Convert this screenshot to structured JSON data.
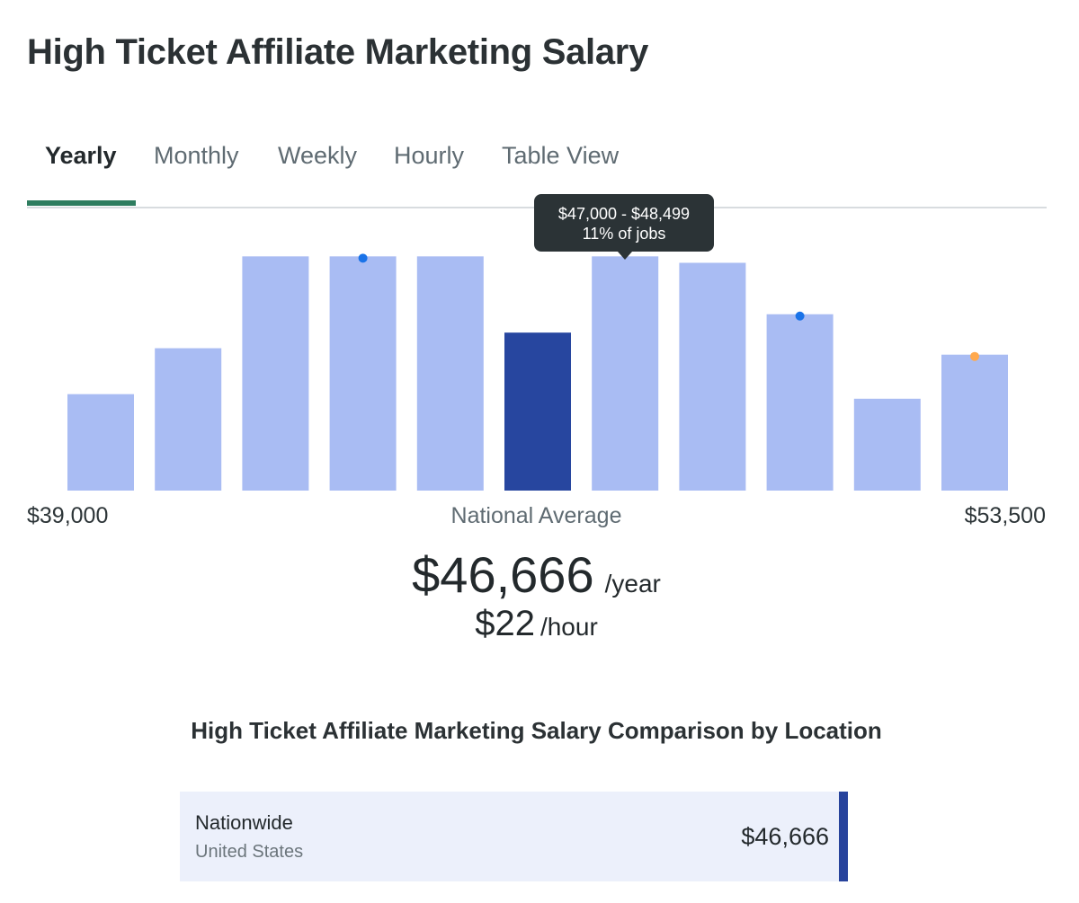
{
  "page": {
    "title": "High Ticket Affiliate Marketing Salary"
  },
  "tabs": [
    {
      "label": "Yearly",
      "active": true
    },
    {
      "label": "Monthly",
      "active": false
    },
    {
      "label": "Weekly",
      "active": false
    },
    {
      "label": "Hourly",
      "active": false
    },
    {
      "label": "Table View",
      "active": false
    }
  ],
  "chart_data": {
    "type": "bar",
    "x_min_label": "$39,000",
    "x_max_label": "$53,500",
    "center_label": "National Average",
    "values": [
      10.5,
      15.5,
      25.5,
      25.5,
      25.5,
      17.2,
      25.5,
      24.8,
      19.2,
      10.0,
      14.8
    ],
    "ylim": [
      0,
      27
    ],
    "highlight_index": 5,
    "markers": [
      {
        "bar": 3,
        "color": "#1a73e8"
      },
      {
        "bar": 8,
        "color": "#1a73e8"
      },
      {
        "bar": 10,
        "color": "#ffa94d"
      }
    ],
    "colors": {
      "bar": "#a9bcf3",
      "highlight": "#27469f"
    },
    "tooltip": {
      "bar": 6,
      "range": "$47,000 - $48,499",
      "share": "11% of jobs"
    }
  },
  "salary": {
    "yearly": "$46,666",
    "yearly_unit": "/year",
    "hourly": "$22",
    "hourly_unit": "/hour"
  },
  "comparison": {
    "title": "High Ticket Affiliate Marketing Salary Comparison by Location",
    "rows": [
      {
        "name": "Nationwide",
        "sub": "United States",
        "value": "$46,666"
      }
    ]
  }
}
